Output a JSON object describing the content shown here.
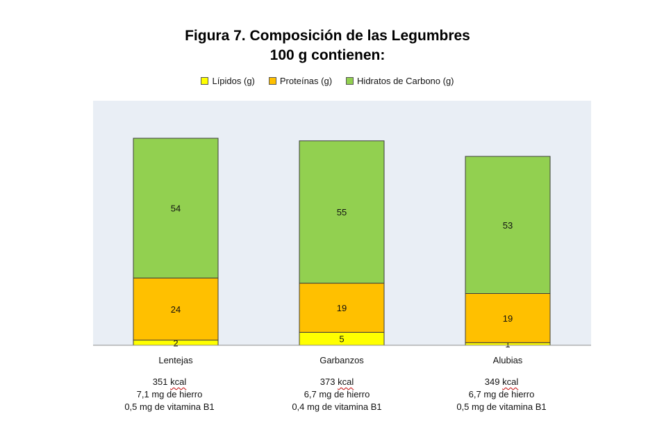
{
  "chart_data": {
    "type": "bar",
    "stacked": true,
    "title": "Figura 7. Composición de las Legumbres",
    "subtitle": "100 g contienen:",
    "categories": [
      "Lentejas",
      "Garbanzos",
      "Alubias"
    ],
    "series": [
      {
        "name": "Lípidos (g)",
        "values": [
          2,
          5,
          1
        ],
        "color": "#ffff00"
      },
      {
        "name": "Proteínas (g)",
        "values": [
          24,
          19,
          19
        ],
        "color": "#ffc000"
      },
      {
        "name": "Hidratos de Carbono (g)",
        "values": [
          54,
          55,
          53
        ],
        "color": "#92d050"
      }
    ],
    "ylim": [
      0,
      94.5
    ],
    "legend_position": "top",
    "grid": false,
    "plot_background": "#e9eef5",
    "bar_border_color": "#3c3c3c",
    "footnotes": [
      {
        "kcal_value": "351",
        "kcal_unit": "kcal",
        "iron": "7,1 mg de hierro",
        "b1": "0,5 mg de vitamina B1"
      },
      {
        "kcal_value": "373",
        "kcal_unit": "kcal",
        "iron": "6,7 mg de hierro",
        "b1": "0,4 mg de vitamina B1"
      },
      {
        "kcal_value": "349",
        "kcal_unit": "kcal",
        "iron": "6,7 mg de hierro",
        "b1": "0,5 mg de vitamina B1"
      }
    ]
  }
}
